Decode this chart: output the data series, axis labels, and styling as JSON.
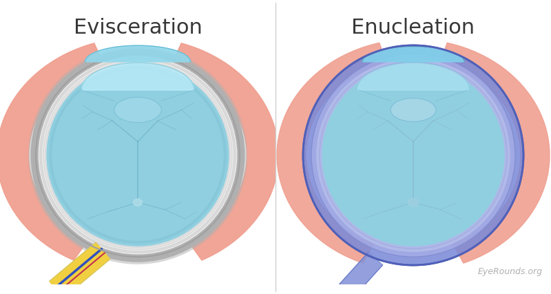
{
  "title_left": "Evisceration",
  "title_right": "Enucleation",
  "background_color": "#ffffff",
  "title_color": "#383838",
  "title_fontsize": 22,
  "eyeball_blue": "#90cfe0",
  "eyeball_blue_dark": "#70b8cc",
  "sclera_white": "#e8e8e8",
  "sclera_gray_outline": "#b0b0b0",
  "sclera_blue_enucleation": "#7888d8",
  "sclera_blue_enucleation_light": "#aab0e8",
  "cornea_top_blue": "#78d0e8",
  "cornea_top_light": "#b8eaf8",
  "lens_blue": "#a0d8e8",
  "lens_blue_dark": "#78c0d8",
  "tissue_pink": "#f0a090",
  "tissue_pink_light": "#f8c0b0",
  "vessel_blue": "#60a8c0",
  "vessel_blue_enucl": "#80a8c8",
  "nerve_yellow": "#f0d040",
  "nerve_blue": "#3050c0",
  "nerve_red": "#c03050",
  "nerve_enucl": "#8090d8",
  "sclera_inner_ring": "#c8c8c8",
  "watermark": "EyeRounds.org",
  "watermark_color": "#b0b0b0",
  "watermark_fontsize": 9,
  "divider_color": "#d0d0d0"
}
